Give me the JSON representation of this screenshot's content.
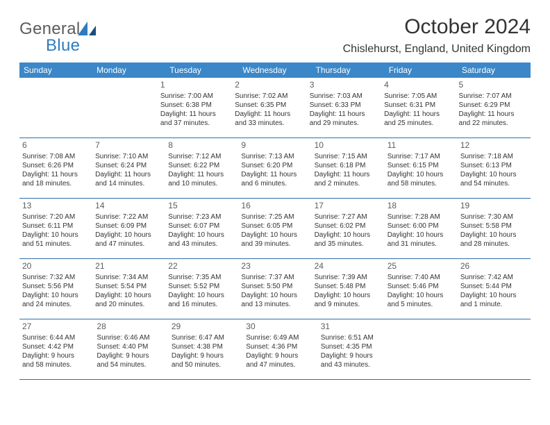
{
  "brand": {
    "text1": "General",
    "text2": "Blue"
  },
  "title": "October 2024",
  "location": "Chislehurst, England, United Kingdom",
  "colors": {
    "header_bg": "#3b87c8",
    "header_text": "#ffffff",
    "border": "#2f6ea8",
    "brand_gray": "#5c5c5c",
    "brand_blue": "#2f7bbf",
    "text": "#333333",
    "background": "#ffffff"
  },
  "weekdays": [
    "Sunday",
    "Monday",
    "Tuesday",
    "Wednesday",
    "Thursday",
    "Friday",
    "Saturday"
  ],
  "weeks": [
    [
      null,
      null,
      {
        "n": "1",
        "sr": "Sunrise: 7:00 AM",
        "ss": "Sunset: 6:38 PM",
        "d1": "Daylight: 11 hours",
        "d2": "and 37 minutes."
      },
      {
        "n": "2",
        "sr": "Sunrise: 7:02 AM",
        "ss": "Sunset: 6:35 PM",
        "d1": "Daylight: 11 hours",
        "d2": "and 33 minutes."
      },
      {
        "n": "3",
        "sr": "Sunrise: 7:03 AM",
        "ss": "Sunset: 6:33 PM",
        "d1": "Daylight: 11 hours",
        "d2": "and 29 minutes."
      },
      {
        "n": "4",
        "sr": "Sunrise: 7:05 AM",
        "ss": "Sunset: 6:31 PM",
        "d1": "Daylight: 11 hours",
        "d2": "and 25 minutes."
      },
      {
        "n": "5",
        "sr": "Sunrise: 7:07 AM",
        "ss": "Sunset: 6:29 PM",
        "d1": "Daylight: 11 hours",
        "d2": "and 22 minutes."
      }
    ],
    [
      {
        "n": "6",
        "sr": "Sunrise: 7:08 AM",
        "ss": "Sunset: 6:26 PM",
        "d1": "Daylight: 11 hours",
        "d2": "and 18 minutes."
      },
      {
        "n": "7",
        "sr": "Sunrise: 7:10 AM",
        "ss": "Sunset: 6:24 PM",
        "d1": "Daylight: 11 hours",
        "d2": "and 14 minutes."
      },
      {
        "n": "8",
        "sr": "Sunrise: 7:12 AM",
        "ss": "Sunset: 6:22 PM",
        "d1": "Daylight: 11 hours",
        "d2": "and 10 minutes."
      },
      {
        "n": "9",
        "sr": "Sunrise: 7:13 AM",
        "ss": "Sunset: 6:20 PM",
        "d1": "Daylight: 11 hours",
        "d2": "and 6 minutes."
      },
      {
        "n": "10",
        "sr": "Sunrise: 7:15 AM",
        "ss": "Sunset: 6:18 PM",
        "d1": "Daylight: 11 hours",
        "d2": "and 2 minutes."
      },
      {
        "n": "11",
        "sr": "Sunrise: 7:17 AM",
        "ss": "Sunset: 6:15 PM",
        "d1": "Daylight: 10 hours",
        "d2": "and 58 minutes."
      },
      {
        "n": "12",
        "sr": "Sunrise: 7:18 AM",
        "ss": "Sunset: 6:13 PM",
        "d1": "Daylight: 10 hours",
        "d2": "and 54 minutes."
      }
    ],
    [
      {
        "n": "13",
        "sr": "Sunrise: 7:20 AM",
        "ss": "Sunset: 6:11 PM",
        "d1": "Daylight: 10 hours",
        "d2": "and 51 minutes."
      },
      {
        "n": "14",
        "sr": "Sunrise: 7:22 AM",
        "ss": "Sunset: 6:09 PM",
        "d1": "Daylight: 10 hours",
        "d2": "and 47 minutes."
      },
      {
        "n": "15",
        "sr": "Sunrise: 7:23 AM",
        "ss": "Sunset: 6:07 PM",
        "d1": "Daylight: 10 hours",
        "d2": "and 43 minutes."
      },
      {
        "n": "16",
        "sr": "Sunrise: 7:25 AM",
        "ss": "Sunset: 6:05 PM",
        "d1": "Daylight: 10 hours",
        "d2": "and 39 minutes."
      },
      {
        "n": "17",
        "sr": "Sunrise: 7:27 AM",
        "ss": "Sunset: 6:02 PM",
        "d1": "Daylight: 10 hours",
        "d2": "and 35 minutes."
      },
      {
        "n": "18",
        "sr": "Sunrise: 7:28 AM",
        "ss": "Sunset: 6:00 PM",
        "d1": "Daylight: 10 hours",
        "d2": "and 31 minutes."
      },
      {
        "n": "19",
        "sr": "Sunrise: 7:30 AM",
        "ss": "Sunset: 5:58 PM",
        "d1": "Daylight: 10 hours",
        "d2": "and 28 minutes."
      }
    ],
    [
      {
        "n": "20",
        "sr": "Sunrise: 7:32 AM",
        "ss": "Sunset: 5:56 PM",
        "d1": "Daylight: 10 hours",
        "d2": "and 24 minutes."
      },
      {
        "n": "21",
        "sr": "Sunrise: 7:34 AM",
        "ss": "Sunset: 5:54 PM",
        "d1": "Daylight: 10 hours",
        "d2": "and 20 minutes."
      },
      {
        "n": "22",
        "sr": "Sunrise: 7:35 AM",
        "ss": "Sunset: 5:52 PM",
        "d1": "Daylight: 10 hours",
        "d2": "and 16 minutes."
      },
      {
        "n": "23",
        "sr": "Sunrise: 7:37 AM",
        "ss": "Sunset: 5:50 PM",
        "d1": "Daylight: 10 hours",
        "d2": "and 13 minutes."
      },
      {
        "n": "24",
        "sr": "Sunrise: 7:39 AM",
        "ss": "Sunset: 5:48 PM",
        "d1": "Daylight: 10 hours",
        "d2": "and 9 minutes."
      },
      {
        "n": "25",
        "sr": "Sunrise: 7:40 AM",
        "ss": "Sunset: 5:46 PM",
        "d1": "Daylight: 10 hours",
        "d2": "and 5 minutes."
      },
      {
        "n": "26",
        "sr": "Sunrise: 7:42 AM",
        "ss": "Sunset: 5:44 PM",
        "d1": "Daylight: 10 hours",
        "d2": "and 1 minute."
      }
    ],
    [
      {
        "n": "27",
        "sr": "Sunrise: 6:44 AM",
        "ss": "Sunset: 4:42 PM",
        "d1": "Daylight: 9 hours",
        "d2": "and 58 minutes."
      },
      {
        "n": "28",
        "sr": "Sunrise: 6:46 AM",
        "ss": "Sunset: 4:40 PM",
        "d1": "Daylight: 9 hours",
        "d2": "and 54 minutes."
      },
      {
        "n": "29",
        "sr": "Sunrise: 6:47 AM",
        "ss": "Sunset: 4:38 PM",
        "d1": "Daylight: 9 hours",
        "d2": "and 50 minutes."
      },
      {
        "n": "30",
        "sr": "Sunrise: 6:49 AM",
        "ss": "Sunset: 4:36 PM",
        "d1": "Daylight: 9 hours",
        "d2": "and 47 minutes."
      },
      {
        "n": "31",
        "sr": "Sunrise: 6:51 AM",
        "ss": "Sunset: 4:35 PM",
        "d1": "Daylight: 9 hours",
        "d2": "and 43 minutes."
      },
      null,
      null
    ]
  ]
}
